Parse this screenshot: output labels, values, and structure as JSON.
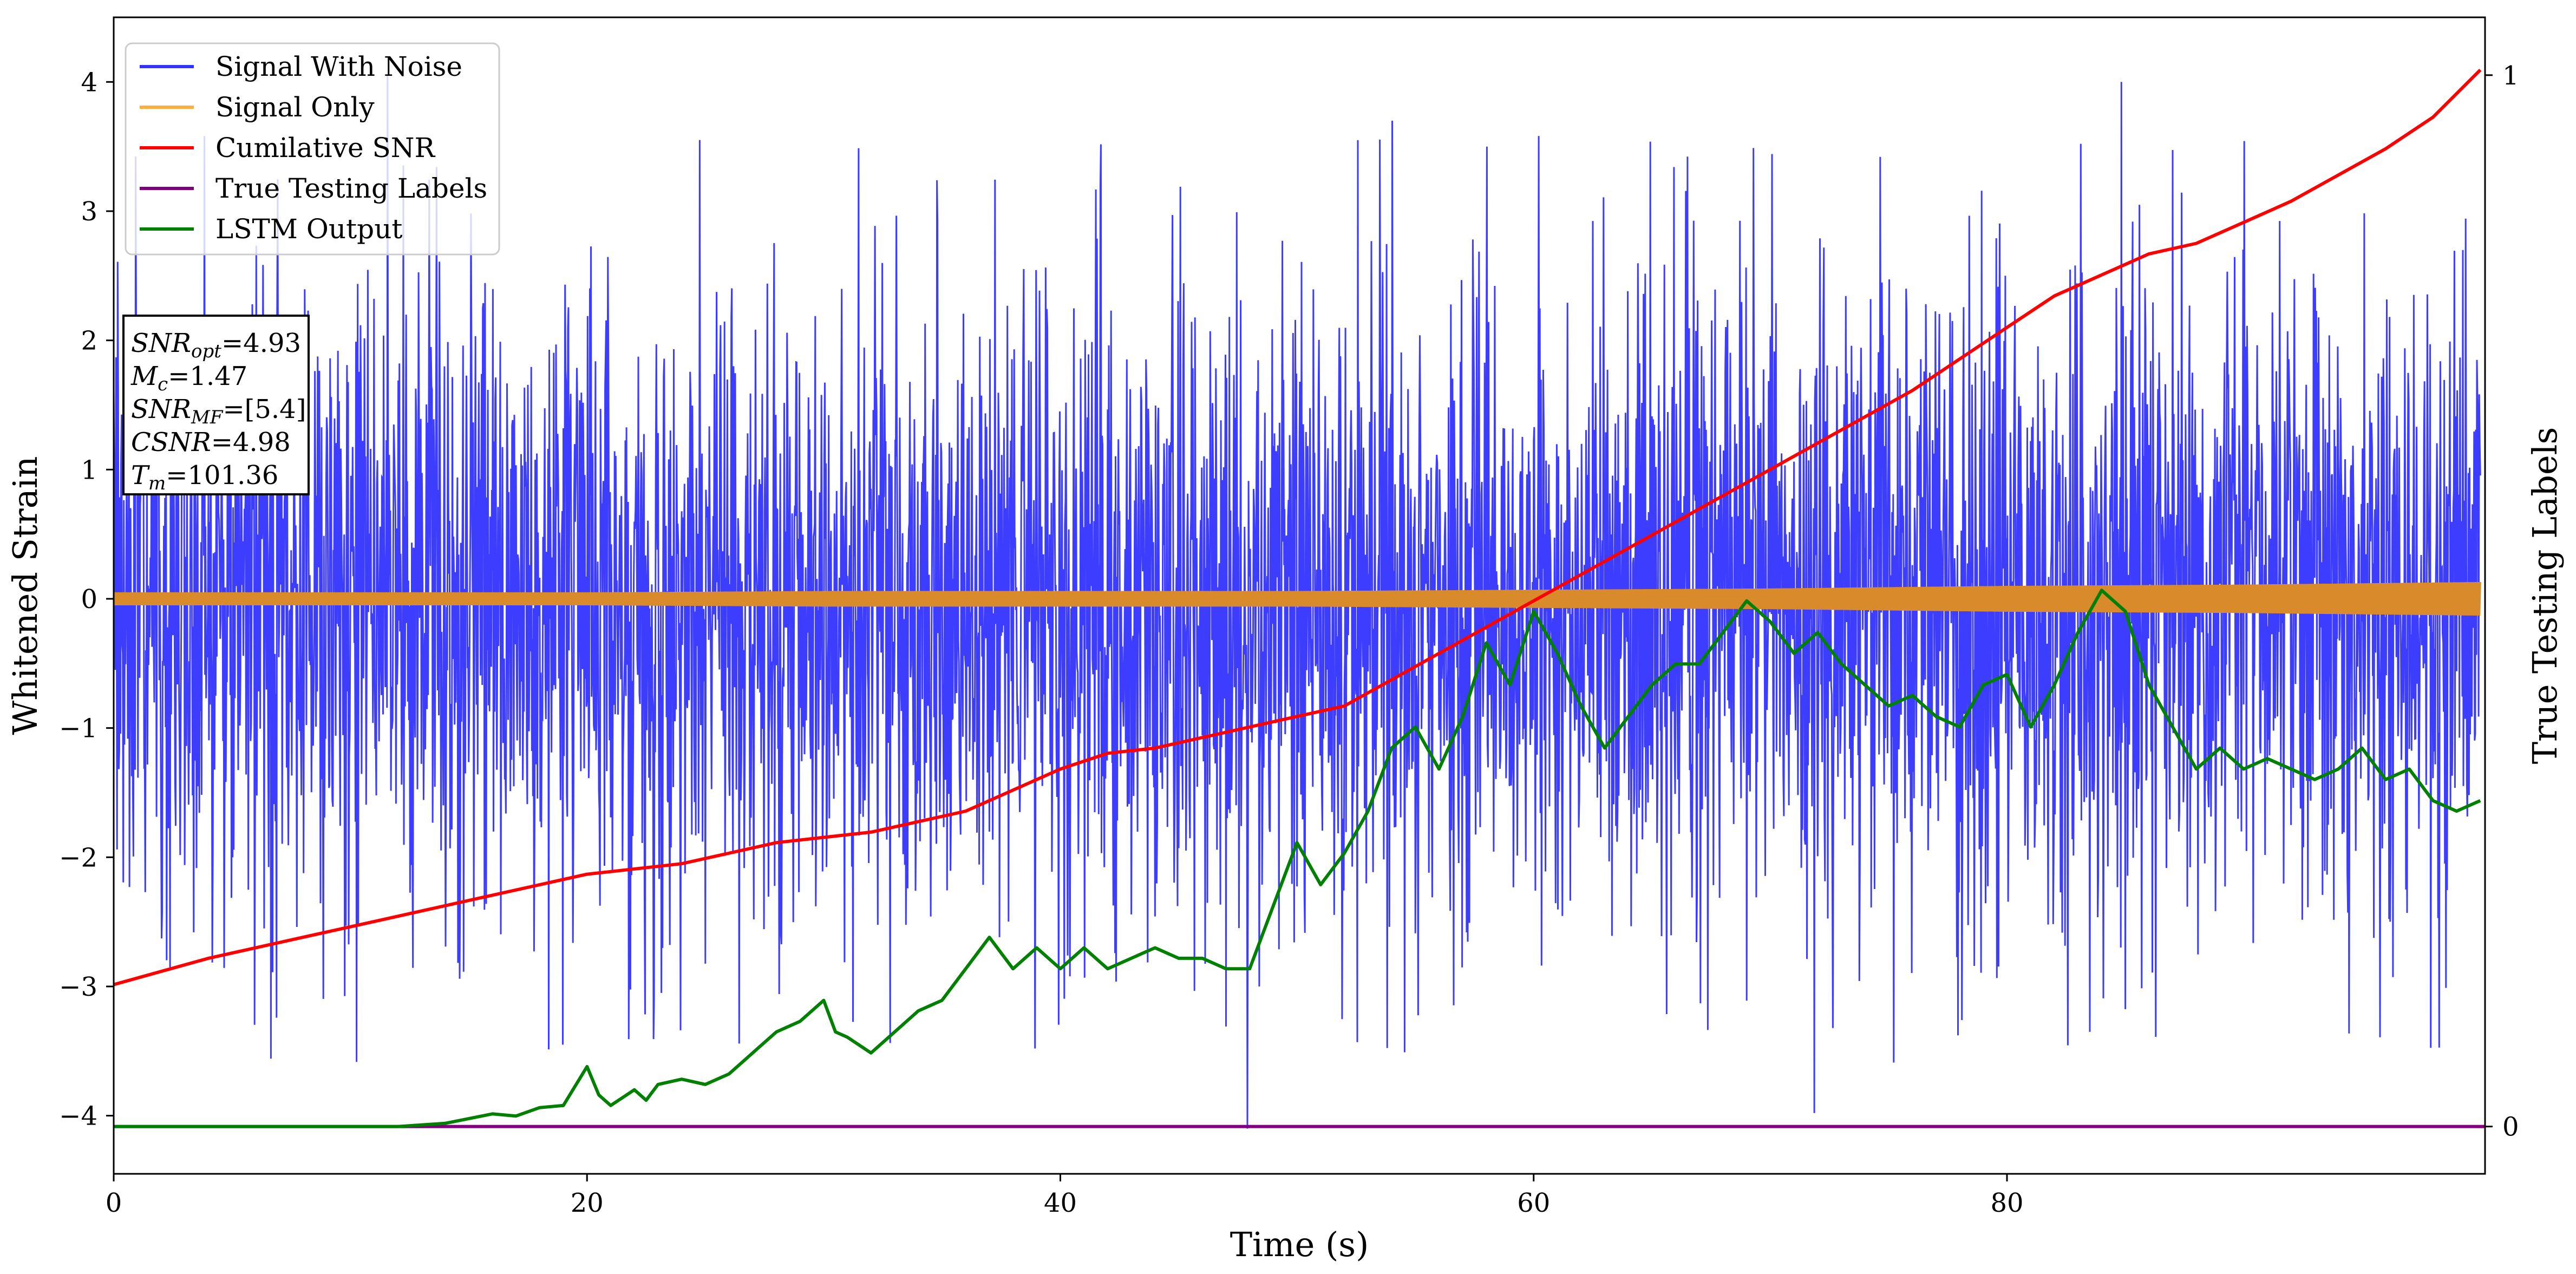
{
  "chart_data": {
    "type": "line",
    "xlabel": "Time (s)",
    "ylabel_left": "Whitened Strain",
    "ylabel_right": "True Testing Labels",
    "xlim": [
      0,
      100.2
    ],
    "ylim_left": [
      -4.45,
      4.5
    ],
    "ylim_right": [
      -0.045,
      1.055
    ],
    "x_ticks": [
      0,
      20,
      40,
      60,
      80
    ],
    "y_ticks_left": [
      -4,
      -3,
      -2,
      -1,
      0,
      1,
      2,
      3,
      4
    ],
    "y_ticks_right": [
      0,
      1
    ],
    "legend_position": "upper left",
    "legend": [
      {
        "name": "Signal With Noise",
        "color": "#3333ff"
      },
      {
        "name": "Signal Only",
        "color": "#ffae3d"
      },
      {
        "name": "Cumilative SNR",
        "color": "#ff0000"
      },
      {
        "name": "True Testing Labels",
        "color": "#800080"
      },
      {
        "name": "LSTM Output",
        "color": "#008000"
      }
    ],
    "annotation_lines": [
      {
        "base": "SNR",
        "sub": "opt",
        "value": "=4.93"
      },
      {
        "base": "M",
        "sub": "c",
        "value": "=1.47"
      },
      {
        "base": "SNR",
        "sub": "MF",
        "value": "=[5.4]"
      },
      {
        "base": "CSNR",
        "sub": "",
        "value": "=4.98"
      },
      {
        "base": "T",
        "sub": "m",
        "value": "=101.36"
      }
    ],
    "series": [
      {
        "name": "Signal With Noise",
        "axis": "left",
        "description": "dense noisy strain, approx +/-1.5 core with spikes to about +/-3.9",
        "notable_points": [
          [
            48.0,
            -4.1
          ],
          [
            72.0,
            -3.98
          ],
          [
            11.6,
            4.05
          ],
          [
            85.0,
            4.0
          ]
        ]
      },
      {
        "name": "Signal Only",
        "axis": "left",
        "envelope": {
          "x": [
            0,
            10,
            20,
            30,
            40,
            50,
            60,
            70,
            80,
            90,
            100
          ],
          "half_amplitude": [
            0.05,
            0.05,
            0.05,
            0.06,
            0.06,
            0.06,
            0.07,
            0.08,
            0.1,
            0.11,
            0.13
          ]
        }
      },
      {
        "name": "Cumilative SNR",
        "axis": "right",
        "x": [
          0,
          4,
          8,
          12,
          16,
          20,
          24,
          28,
          32,
          36,
          40,
          42,
          44,
          48,
          52,
          56,
          60,
          64,
          68,
          72,
          76,
          80,
          82,
          84,
          86,
          88,
          90,
          92,
          96,
          98,
          100
        ],
        "y": [
          0.135,
          0.16,
          0.18,
          0.2,
          0.22,
          0.24,
          0.25,
          0.27,
          0.28,
          0.3,
          0.34,
          0.355,
          0.36,
          0.38,
          0.4,
          0.45,
          0.5,
          0.55,
          0.6,
          0.65,
          0.7,
          0.76,
          0.79,
          0.81,
          0.83,
          0.84,
          0.86,
          0.88,
          0.93,
          0.96,
          1.005
        ]
      },
      {
        "name": "True Testing Labels",
        "axis": "right",
        "x": [
          0,
          100.2
        ],
        "y": [
          0,
          0
        ]
      },
      {
        "name": "LSTM Output",
        "axis": "right",
        "x": [
          0,
          12,
          14,
          16,
          17,
          18,
          19,
          20,
          20.5,
          21,
          22,
          22.5,
          23,
          24,
          25,
          26,
          27,
          28,
          29,
          30,
          30.5,
          31,
          32,
          33,
          34,
          35,
          36,
          37,
          38,
          39,
          40,
          41,
          42,
          43,
          44,
          45,
          46,
          47,
          48,
          49,
          50,
          51,
          52,
          53,
          54,
          55,
          56,
          57,
          58,
          59,
          60,
          61,
          62,
          63,
          64,
          65,
          66,
          67,
          68,
          69,
          70,
          71,
          72,
          73,
          74,
          75,
          76,
          77,
          78,
          79,
          80,
          81,
          82,
          83,
          84,
          85,
          86,
          87,
          88,
          89,
          90,
          91,
          92,
          93,
          94,
          95,
          96,
          97,
          98,
          99,
          100
        ],
        "y": [
          0,
          0,
          0.003,
          0.012,
          0.01,
          0.018,
          0.02,
          0.057,
          0.03,
          0.02,
          0.035,
          0.025,
          0.04,
          0.045,
          0.04,
          0.05,
          0.07,
          0.09,
          0.1,
          0.12,
          0.09,
          0.085,
          0.07,
          0.09,
          0.11,
          0.12,
          0.15,
          0.18,
          0.15,
          0.17,
          0.15,
          0.17,
          0.15,
          0.16,
          0.17,
          0.16,
          0.16,
          0.15,
          0.15,
          0.21,
          0.27,
          0.23,
          0.26,
          0.3,
          0.36,
          0.38,
          0.34,
          0.39,
          0.46,
          0.42,
          0.49,
          0.45,
          0.4,
          0.36,
          0.39,
          0.42,
          0.44,
          0.44,
          0.47,
          0.5,
          0.48,
          0.45,
          0.47,
          0.44,
          0.42,
          0.4,
          0.41,
          0.39,
          0.38,
          0.42,
          0.43,
          0.38,
          0.42,
          0.47,
          0.51,
          0.49,
          0.42,
          0.38,
          0.34,
          0.36,
          0.34,
          0.35,
          0.34,
          0.33,
          0.34,
          0.36,
          0.33,
          0.34,
          0.31,
          0.3,
          0.31
        ]
      }
    ]
  }
}
